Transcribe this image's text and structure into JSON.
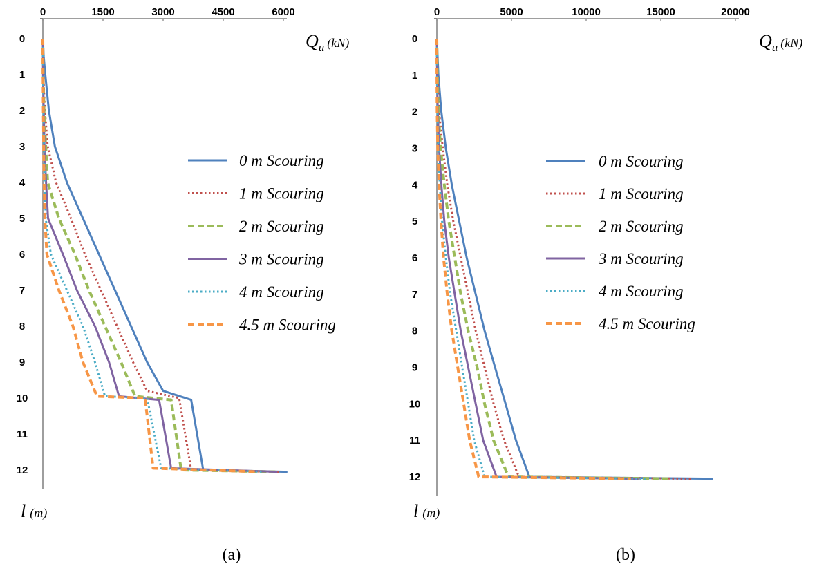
{
  "chart_data": [
    {
      "type": "line",
      "panel": "(a)",
      "caption": "(a)",
      "xlabel": {
        "main": "Q",
        "sub": "u",
        "unit": "(kN)"
      },
      "ylabel": {
        "main": "l",
        "unit": "(m)"
      },
      "x_ticks": [
        0,
        1500,
        3000,
        4500,
        6000
      ],
      "y_ticks": [
        0,
        1,
        2,
        3,
        4,
        5,
        6,
        7,
        8,
        9,
        10,
        11,
        12
      ],
      "xlim": [
        0,
        6000
      ],
      "ylim": [
        0,
        12
      ],
      "x_axis_position": "top",
      "y_axis_direction": "downward",
      "grid": false,
      "legend_position": "right",
      "series": [
        {
          "name": "0 m Scouring",
          "color": "#4f81bd",
          "dash": "solid",
          "width": 3,
          "points": [
            [
              0,
              0
            ],
            [
              20,
              0.5
            ],
            [
              60,
              1
            ],
            [
              150,
              2
            ],
            [
              300,
              3
            ],
            [
              600,
              4
            ],
            [
              1000,
              5
            ],
            [
              1400,
              6
            ],
            [
              1800,
              7
            ],
            [
              2200,
              8
            ],
            [
              2600,
              9
            ],
            [
              3000,
              9.8
            ],
            [
              3700,
              10.05
            ],
            [
              4000,
              12
            ],
            [
              6100,
              12.05
            ]
          ]
        },
        {
          "name": "1 m Scouring",
          "color": "#c0504d",
          "dash": "dotted",
          "width": 3,
          "points": [
            [
              0,
              0
            ],
            [
              10,
              1
            ],
            [
              50,
              2
            ],
            [
              120,
              3
            ],
            [
              330,
              4
            ],
            [
              700,
              5
            ],
            [
              1050,
              6
            ],
            [
              1450,
              7
            ],
            [
              1850,
              8
            ],
            [
              2250,
              9
            ],
            [
              2600,
              9.8
            ],
            [
              3400,
              10
            ],
            [
              3700,
              12
            ],
            [
              5900,
              12.05
            ]
          ]
        },
        {
          "name": "2 m Scouring",
          "color": "#9bbb59",
          "dash": "dashed",
          "width": 4,
          "points": [
            [
              0,
              0
            ],
            [
              5,
              1
            ],
            [
              30,
              2
            ],
            [
              70,
              3
            ],
            [
              120,
              4
            ],
            [
              400,
              5
            ],
            [
              800,
              6
            ],
            [
              1150,
              7
            ],
            [
              1550,
              8
            ],
            [
              1950,
              9
            ],
            [
              2300,
              9.95
            ],
            [
              3200,
              10.05
            ],
            [
              3450,
              12
            ],
            [
              5800,
              12.05
            ]
          ]
        },
        {
          "name": "3 m Scouring",
          "color": "#8064a2",
          "dash": "solid",
          "width": 3,
          "points": [
            [
              0,
              0
            ],
            [
              5,
              1
            ],
            [
              20,
              2
            ],
            [
              40,
              3
            ],
            [
              80,
              4
            ],
            [
              130,
              5
            ],
            [
              500,
              6
            ],
            [
              850,
              7
            ],
            [
              1300,
              8
            ],
            [
              1650,
              9
            ],
            [
              1900,
              9.95
            ],
            [
              2900,
              10.05
            ],
            [
              3200,
              11.95
            ],
            [
              5850,
              12.05
            ]
          ]
        },
        {
          "name": "4 m Scouring",
          "color": "#4bacc6",
          "dash": "dotted",
          "width": 3,
          "points": [
            [
              0,
              0
            ],
            [
              5,
              1
            ],
            [
              15,
              2
            ],
            [
              30,
              3
            ],
            [
              50,
              4
            ],
            [
              70,
              5
            ],
            [
              200,
              6
            ],
            [
              600,
              7
            ],
            [
              1000,
              8
            ],
            [
              1300,
              9
            ],
            [
              1550,
              9.95
            ],
            [
              2600,
              10
            ],
            [
              2950,
              11.95
            ],
            [
              5500,
              12.05
            ]
          ]
        },
        {
          "name": "4.5 m Scouring",
          "color": "#f79646",
          "dash": "dashed",
          "width": 4,
          "points": [
            [
              0,
              0
            ],
            [
              5,
              1
            ],
            [
              10,
              2
            ],
            [
              20,
              3
            ],
            [
              30,
              4
            ],
            [
              50,
              5
            ],
            [
              100,
              6
            ],
            [
              400,
              7
            ],
            [
              750,
              8
            ],
            [
              1000,
              9
            ],
            [
              1350,
              9.95
            ],
            [
              2550,
              10
            ],
            [
              2750,
              11.95
            ],
            [
              5400,
              12.05
            ]
          ]
        }
      ]
    },
    {
      "type": "line",
      "panel": "(b)",
      "caption": "(b)",
      "xlabel": {
        "main": "Q",
        "sub": "u",
        "unit": "(kN)"
      },
      "ylabel": {
        "main": "l",
        "unit": "(m)"
      },
      "x_ticks": [
        0,
        5000,
        10000,
        15000,
        20000
      ],
      "y_ticks": [
        0,
        1,
        2,
        3,
        4,
        5,
        6,
        7,
        8,
        9,
        10,
        11,
        12
      ],
      "xlim": [
        0,
        20000
      ],
      "ylim": [
        0,
        12
      ],
      "x_axis_position": "top",
      "y_axis_direction": "downward",
      "grid": false,
      "legend_position": "right",
      "series": [
        {
          "name": "0 m Scouring",
          "color": "#4f81bd",
          "dash": "solid",
          "width": 3,
          "points": [
            [
              0,
              0
            ],
            [
              100,
              1
            ],
            [
              300,
              2
            ],
            [
              600,
              3
            ],
            [
              1000,
              4
            ],
            [
              1500,
              5
            ],
            [
              2000,
              6
            ],
            [
              2600,
              7
            ],
            [
              3200,
              8
            ],
            [
              3900,
              9
            ],
            [
              4600,
              10
            ],
            [
              5300,
              11
            ],
            [
              6200,
              12
            ],
            [
              18500,
              12.05
            ]
          ]
        },
        {
          "name": "1 m Scouring",
          "color": "#c0504d",
          "dash": "dotted",
          "width": 3,
          "points": [
            [
              0,
              0
            ],
            [
              50,
              1
            ],
            [
              150,
              2
            ],
            [
              400,
              3
            ],
            [
              700,
              4
            ],
            [
              1100,
              5
            ],
            [
              1600,
              6
            ],
            [
              2100,
              7
            ],
            [
              2600,
              8
            ],
            [
              3200,
              9
            ],
            [
              3800,
              10
            ],
            [
              4500,
              11
            ],
            [
              5500,
              12
            ],
            [
              17000,
              12.05
            ]
          ]
        },
        {
          "name": "2 m Scouring",
          "color": "#9bbb59",
          "dash": "dashed",
          "width": 4,
          "points": [
            [
              0,
              0
            ],
            [
              30,
              1
            ],
            [
              100,
              2
            ],
            [
              250,
              3
            ],
            [
              500,
              4
            ],
            [
              800,
              5
            ],
            [
              1200,
              6
            ],
            [
              1600,
              7
            ],
            [
              2100,
              8
            ],
            [
              2700,
              9
            ],
            [
              3200,
              10
            ],
            [
              3800,
              11
            ],
            [
              4800,
              12
            ],
            [
              15500,
              12.05
            ]
          ]
        },
        {
          "name": "3 m Scouring",
          "color": "#8064a2",
          "dash": "solid",
          "width": 3,
          "points": [
            [
              0,
              0
            ],
            [
              20,
              1
            ],
            [
              60,
              2
            ],
            [
              150,
              3
            ],
            [
              300,
              4
            ],
            [
              500,
              5
            ],
            [
              800,
              6
            ],
            [
              1200,
              7
            ],
            [
              1600,
              8
            ],
            [
              2100,
              9
            ],
            [
              2600,
              10
            ],
            [
              3100,
              11
            ],
            [
              4000,
              12
            ],
            [
              13500,
              12.05
            ]
          ]
        },
        {
          "name": "4 m Scouring",
          "color": "#4bacc6",
          "dash": "dotted",
          "width": 3,
          "points": [
            [
              0,
              0
            ],
            [
              10,
              1
            ],
            [
              40,
              2
            ],
            [
              100,
              3
            ],
            [
              200,
              4
            ],
            [
              350,
              5
            ],
            [
              600,
              6
            ],
            [
              900,
              7
            ],
            [
              1300,
              8
            ],
            [
              1700,
              9
            ],
            [
              2100,
              10
            ],
            [
              2500,
              11
            ],
            [
              3200,
              12
            ],
            [
              14000,
              12.05
            ]
          ]
        },
        {
          "name": "4.5 m Scouring",
          "color": "#f79646",
          "dash": "dashed",
          "width": 4,
          "points": [
            [
              0,
              0
            ],
            [
              5,
              1
            ],
            [
              20,
              2
            ],
            [
              60,
              3
            ],
            [
              150,
              4
            ],
            [
              280,
              5
            ],
            [
              450,
              6
            ],
            [
              700,
              7
            ],
            [
              1000,
              8
            ],
            [
              1400,
              9
            ],
            [
              1800,
              10
            ],
            [
              2200,
              11
            ],
            [
              2800,
              12
            ],
            [
              13000,
              12.05
            ]
          ]
        }
      ]
    }
  ]
}
